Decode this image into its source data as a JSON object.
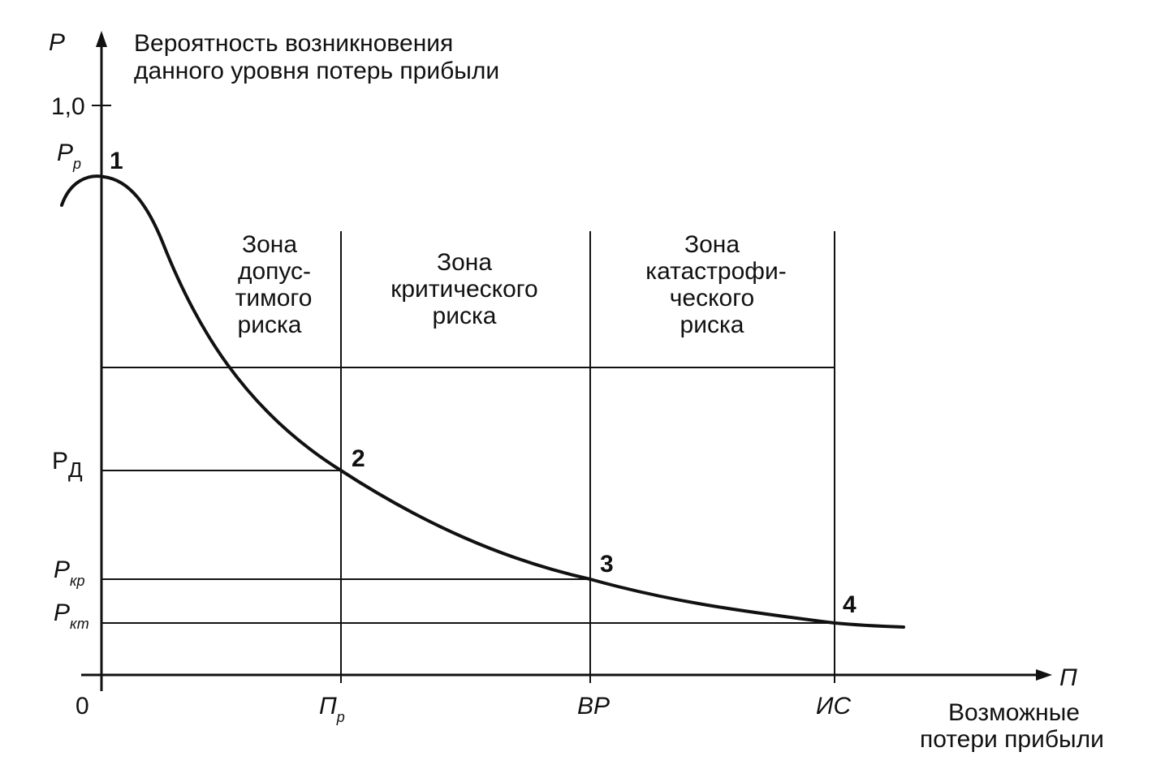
{
  "y_axis": {
    "symbol": "P",
    "title_line1": "Вероятность возникновения",
    "title_line2": "данного уровня потерь прибыли",
    "tick_one": "1,0"
  },
  "x_axis": {
    "symbol": "П",
    "origin": "0",
    "title_line1": "Возможные",
    "title_line2": "потери прибыли"
  },
  "y_levels": {
    "p_r": {
      "base": "P",
      "sub": "р"
    },
    "p_d": {
      "base": "Р",
      "sub": "Д"
    },
    "p_kr": {
      "base": "P",
      "sub": "кр"
    },
    "p_kt": {
      "base": "P",
      "sub": "кт"
    }
  },
  "x_marks": {
    "p_r": {
      "base": "П",
      "sub": "р"
    },
    "vr": "ВР",
    "is": "ИС"
  },
  "points": [
    "1",
    "2",
    "3",
    "4"
  ],
  "zones": {
    "acceptable": [
      "Зона",
      "допус-",
      "тимого",
      "риска"
    ],
    "critical": [
      "Зона",
      "критического",
      "риска"
    ],
    "catastrophic": [
      "Зона",
      "катастрофи-",
      "ческого",
      "риска"
    ]
  },
  "colors": {
    "ink": "#111111",
    "background": "#ffffff"
  }
}
